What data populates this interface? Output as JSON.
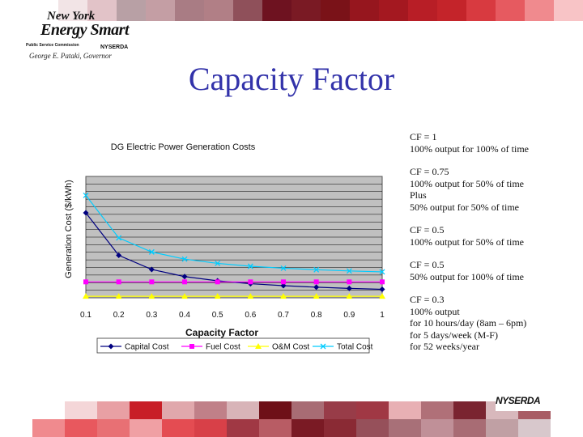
{
  "header": {
    "logo": {
      "line1": "New York",
      "line2": "Energy Smart",
      "psc": "Public Service Commission",
      "nyserda": "NYSERDA",
      "governor": "George E. Pataki, Governor"
    },
    "title": "Capacity Factor"
  },
  "colors": {
    "top_band": [
      "#ffffff",
      "#ffffff",
      "#f2e4e6",
      "#e2c3c8",
      "#b8a0a5",
      "#c49ea4",
      "#a97c84",
      "#b17f86",
      "#8f505a",
      "#6e1220",
      "#7a1a24",
      "#7a1218",
      "#96161e",
      "#a41820",
      "#b81e26",
      "#c4242a",
      "#d83a40",
      "#e65a60",
      "#f08a8e",
      "#f8c4c6"
    ],
    "bottom_band_top": [
      "#ffffff",
      "#ffffff",
      "#f4d6d8",
      "#e8a0a4",
      "#c81e26",
      "#e0a8ac",
      "#c08088",
      "#d8b4b8",
      "#6e1018",
      "#a86c74",
      "#983c48",
      "#a03844",
      "#e8b0b4",
      "#b07078",
      "#7a2430",
      "#d8b8bc",
      "#a85c64",
      "#ffffff"
    ],
    "bottom_band_bottom": [
      "#ffffff",
      "#f08a8e",
      "#e8585e",
      "#e87074",
      "#f0a0a4",
      "#e44c52",
      "#d84048",
      "#a03844",
      "#b85c64",
      "#7a1a24",
      "#8a2a34",
      "#96505a",
      "#a87078",
      "#c09098",
      "#a86c74",
      "#c0a0a4",
      "#d8c8cc",
      "#ffffff"
    ],
    "capital": "#000080",
    "fuel": "#ff00ff",
    "om": "#ffff00",
    "total": "#00ccff",
    "plot_bg": "#c0c0c0"
  },
  "chart_data": {
    "type": "line",
    "title": "DG Electric Power Generation Costs",
    "xlabel": "Capacity Factor",
    "ylabel": "Generation Cost ($/kWh)",
    "x": [
      0.1,
      0.2,
      0.3,
      0.4,
      0.5,
      0.6,
      0.7,
      0.8,
      0.9,
      1
    ],
    "x_tick_labels": [
      "0.1",
      "0.2",
      "0.3",
      "0.4",
      "0.5",
      "0.6",
      "0.7",
      "0.8",
      "0.9",
      "1"
    ],
    "ylim": [
      0,
      8
    ],
    "y_ticks_shown": false,
    "grid": true,
    "legend_position": "bottom",
    "series": [
      {
        "name": "Capital Cost",
        "marker": "diamond",
        "values": [
          5.6,
          2.8,
          1.87,
          1.4,
          1.12,
          0.93,
          0.8,
          0.7,
          0.62,
          0.56
        ]
      },
      {
        "name": "Fuel Cost",
        "marker": "square",
        "values": [
          1.05,
          1.05,
          1.05,
          1.05,
          1.05,
          1.05,
          1.05,
          1.05,
          1.05,
          1.05
        ]
      },
      {
        "name": "O&M Cost",
        "marker": "triangle",
        "values": [
          0.1,
          0.1,
          0.1,
          0.1,
          0.1,
          0.1,
          0.1,
          0.1,
          0.1,
          0.1
        ]
      },
      {
        "name": "Total Cost",
        "marker": "x",
        "values": [
          6.75,
          3.95,
          3.02,
          2.55,
          2.27,
          2.08,
          1.95,
          1.85,
          1.77,
          1.71
        ]
      }
    ]
  },
  "notes": [
    {
      "lines": [
        "CF = 1",
        "100% output for 100% of time"
      ]
    },
    {
      "lines": [
        "CF = 0.75",
        "100% output for 50% of time",
        "Plus",
        "50% output for 50% of time"
      ]
    },
    {
      "lines": [
        "CF = 0.5",
        "100% output for 50% of time"
      ]
    },
    {
      "lines": [
        "CF = 0.5",
        "50% output for 100% of time"
      ]
    },
    {
      "lines": [
        "CF = 0.3",
        "100% output",
        "for 10 hours/day (8am – 6pm)",
        "for 5 days/week (M-F)",
        "for 52 weeks/year"
      ]
    }
  ],
  "footer": {
    "logo": "NYSERDA"
  }
}
